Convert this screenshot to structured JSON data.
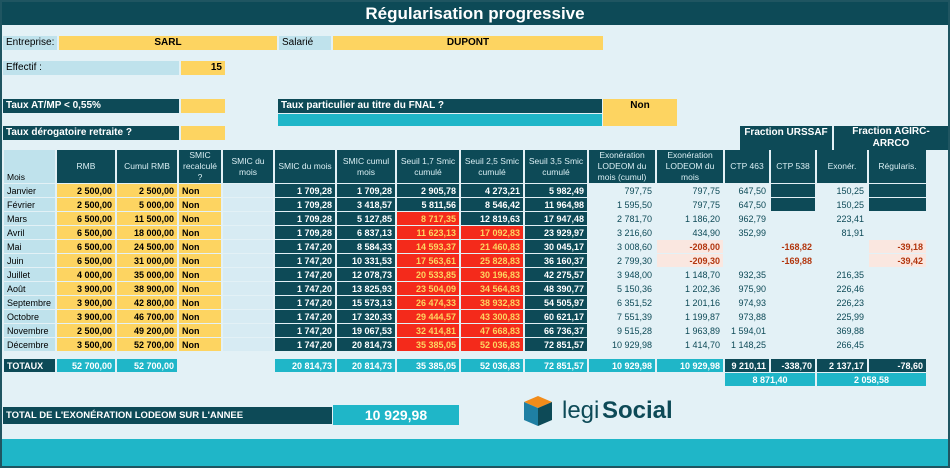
{
  "title": "Régularisation progressive",
  "entreprise": {
    "label": "Entreprise:",
    "value": "SARL"
  },
  "salarie": {
    "label": "Salarié",
    "value": "DUPONT"
  },
  "effectif": {
    "label": "Effectif :",
    "value": "15"
  },
  "taux_atmp": {
    "label": "Taux AT/MP < 0,55%"
  },
  "taux_fnal": {
    "label": "Taux particulier au titre du FNAL ?",
    "value": "Non"
  },
  "taux_derog": {
    "label": "Taux dérogatoire retraite ?"
  },
  "groups": {
    "urssaf": "Fraction URSSAF",
    "agirc": "Fraction AGIRC-ARRCO"
  },
  "headers": [
    "Mois",
    "RMB",
    "Cumul RMB",
    "SMIC recalculé ?",
    "SMIC du mois",
    "SMIC du mois",
    "SMIC cumul mois",
    "Seuil 1,7 Smic cumulé",
    "Seuil 2,5 Smic cumulé",
    "Seuil 3,5 Smic cumulé",
    "Exonération LODEOM du mois (cumul)",
    "Exonération LODEOM du mois",
    "CTP 463",
    "CTP 538",
    "Exonér.",
    "Régularis."
  ],
  "rows": [
    {
      "mois": "Janvier",
      "rmb": "2 500,00",
      "cumul": "2 500,00",
      "recalc": "Non",
      "smic": "1 709,28",
      "smic_cumul": "1 709,28",
      "s17": "2 905,78",
      "s25": "4 273,21",
      "s35": "5 982,49",
      "exo_cumul": "797,75",
      "exo_mois": "797,75",
      "ctp463": "647,50",
      "ctp538": "",
      "exoner": "150,25",
      "regul": "",
      "red17": false,
      "red25": false
    },
    {
      "mois": "Février",
      "rmb": "2 500,00",
      "cumul": "5 000,00",
      "recalc": "Non",
      "smic": "1 709,28",
      "smic_cumul": "3 418,57",
      "s17": "5 811,56",
      "s25": "8 546,42",
      "s35": "11 964,98",
      "exo_cumul": "1 595,50",
      "exo_mois": "797,75",
      "ctp463": "647,50",
      "ctp538": "",
      "exoner": "150,25",
      "regul": "",
      "red17": false,
      "red25": false
    },
    {
      "mois": "Mars",
      "rmb": "6 500,00",
      "cumul": "11 500,00",
      "recalc": "Non",
      "smic": "1 709,28",
      "smic_cumul": "5 127,85",
      "s17": "8 717,35",
      "s25": "12 819,63",
      "s35": "17 947,48",
      "exo_cumul": "2 781,70",
      "exo_mois": "1 186,20",
      "ctp463": "962,79",
      "ctp538": "",
      "exoner": "223,41",
      "regul": "",
      "red17": true,
      "red25": false
    },
    {
      "mois": "Avril",
      "rmb": "6 500,00",
      "cumul": "18 000,00",
      "recalc": "Non",
      "smic": "1 709,28",
      "smic_cumul": "6 837,13",
      "s17": "11 623,13",
      "s25": "17 092,83",
      "s35": "23 929,97",
      "exo_cumul": "3 216,60",
      "exo_mois": "434,90",
      "ctp463": "352,99",
      "ctp538": "",
      "exoner": "81,91",
      "regul": "",
      "red17": true,
      "red25": true
    },
    {
      "mois": "Mai",
      "rmb": "6 500,00",
      "cumul": "24 500,00",
      "recalc": "Non",
      "smic": "1 747,20",
      "smic_cumul": "8 584,33",
      "s17": "14 593,37",
      "s25": "21 460,83",
      "s35": "30 045,17",
      "exo_cumul": "3 008,60",
      "exo_mois": "-208,00",
      "ctp463": "",
      "ctp538": "-168,82",
      "exoner": "",
      "regul": "-39,18",
      "red17": true,
      "red25": true
    },
    {
      "mois": "Juin",
      "rmb": "6 500,00",
      "cumul": "31 000,00",
      "recalc": "Non",
      "smic": "1 747,20",
      "smic_cumul": "10 331,53",
      "s17": "17 563,61",
      "s25": "25 828,83",
      "s35": "36 160,37",
      "exo_cumul": "2 799,30",
      "exo_mois": "-209,30",
      "ctp463": "",
      "ctp538": "-169,88",
      "exoner": "",
      "regul": "-39,42",
      "red17": true,
      "red25": true
    },
    {
      "mois": "Juillet",
      "rmb": "4 000,00",
      "cumul": "35 000,00",
      "recalc": "Non",
      "smic": "1 747,20",
      "smic_cumul": "12 078,73",
      "s17": "20 533,85",
      "s25": "30 196,83",
      "s35": "42 275,57",
      "exo_cumul": "3 948,00",
      "exo_mois": "1 148,70",
      "ctp463": "932,35",
      "ctp538": "",
      "exoner": "216,35",
      "regul": "",
      "red17": true,
      "red25": true
    },
    {
      "mois": "Août",
      "rmb": "3 900,00",
      "cumul": "38 900,00",
      "recalc": "Non",
      "smic": "1 747,20",
      "smic_cumul": "13 825,93",
      "s17": "23 504,09",
      "s25": "34 564,83",
      "s35": "48 390,77",
      "exo_cumul": "5 150,36",
      "exo_mois": "1 202,36",
      "ctp463": "975,90",
      "ctp538": "",
      "exoner": "226,46",
      "regul": "",
      "red17": true,
      "red25": true
    },
    {
      "mois": "Septembre",
      "rmb": "3 900,00",
      "cumul": "42 800,00",
      "recalc": "Non",
      "smic": "1 747,20",
      "smic_cumul": "15 573,13",
      "s17": "26 474,33",
      "s25": "38 932,83",
      "s35": "54 505,97",
      "exo_cumul": "6 351,52",
      "exo_mois": "1 201,16",
      "ctp463": "974,93",
      "ctp538": "",
      "exoner": "226,23",
      "regul": "",
      "red17": true,
      "red25": true
    },
    {
      "mois": "Octobre",
      "rmb": "3 900,00",
      "cumul": "46 700,00",
      "recalc": "Non",
      "smic": "1 747,20",
      "smic_cumul": "17 320,33",
      "s17": "29 444,57",
      "s25": "43 300,83",
      "s35": "60 621,17",
      "exo_cumul": "7 551,39",
      "exo_mois": "1 199,87",
      "ctp463": "973,88",
      "ctp538": "",
      "exoner": "225,99",
      "regul": "",
      "red17": true,
      "red25": true
    },
    {
      "mois": "Novembre",
      "rmb": "2 500,00",
      "cumul": "49 200,00",
      "recalc": "Non",
      "smic": "1 747,20",
      "smic_cumul": "19 067,53",
      "s17": "32 414,81",
      "s25": "47 668,83",
      "s35": "66 736,37",
      "exo_cumul": "9 515,28",
      "exo_mois": "1 963,89",
      "ctp463": "1 594,01",
      "ctp538": "",
      "exoner": "369,88",
      "regul": "",
      "red17": true,
      "red25": true
    },
    {
      "mois": "Décembre",
      "rmb": "3 500,00",
      "cumul": "52 700,00",
      "recalc": "Non",
      "smic": "1 747,20",
      "smic_cumul": "20 814,73",
      "s17": "35 385,05",
      "s25": "52 036,83",
      "s35": "72 851,57",
      "exo_cumul": "10 929,98",
      "exo_mois": "1 414,70",
      "ctp463": "1 148,25",
      "ctp538": "",
      "exoner": "266,45",
      "regul": "",
      "red17": true,
      "red25": true
    }
  ],
  "totals": {
    "label": "TOTAUX",
    "rmb": "52 700,00",
    "cumul": "52 700,00",
    "smic": "20 814,73",
    "smic_cumul": "20 814,73",
    "s17": "35 385,05",
    "s25": "52 036,83",
    "s35": "72 851,57",
    "exo_cumul": "10 929,98",
    "exo_mois": "10 929,98",
    "ctp463": "9 210,11",
    "ctp538": "-338,70",
    "exoner": "2 137,17",
    "regul": "-78,60",
    "urssaf_sum": "8 871,40",
    "agirc_sum": "2 058,58"
  },
  "total_exo": {
    "label": "TOTAL DE L'EXONÉRATION LODEOM SUR L'ANNEE",
    "value": "10 929,98"
  },
  "logo": {
    "part1": "legi",
    "part2": "Social"
  }
}
